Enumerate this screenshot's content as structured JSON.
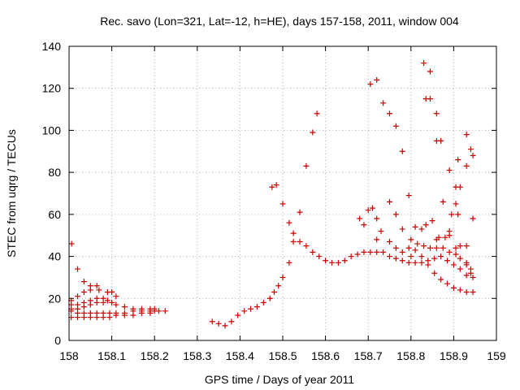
{
  "chart_data": {
    "type": "scatter",
    "title": "Rec. savo (Lon=321, Lat=-12, h=HE), days 157-158, 2011, window 004",
    "xlabel": "GPS time / Days of year 2011",
    "ylabel": "STEC from uqrg / TECUs",
    "xlim": [
      158,
      159
    ],
    "ylim": [
      0,
      140
    ],
    "x_ticks": [
      "158",
      "158.1",
      "158.2",
      "158.3",
      "158.4",
      "158.5",
      "158.6",
      "158.7",
      "158.8",
      "158.9",
      "159"
    ],
    "y_ticks": [
      "0",
      "20",
      "40",
      "60",
      "80",
      "100",
      "120",
      "140"
    ],
    "grid": true,
    "marker": "plus",
    "marker_color": "#cc0000",
    "points": [
      [
        158.006,
        46
      ],
      [
        158.02,
        34
      ],
      [
        158.035,
        28
      ],
      [
        158.05,
        26
      ],
      [
        158.065,
        26
      ],
      [
        158.005,
        19
      ],
      [
        158.02,
        21
      ],
      [
        158.035,
        23
      ],
      [
        158.05,
        24
      ],
      [
        158.07,
        24
      ],
      [
        158.09,
        23
      ],
      [
        158.1,
        23
      ],
      [
        158.11,
        21
      ],
      [
        158.005,
        17
      ],
      [
        158.02,
        17
      ],
      [
        158.035,
        18
      ],
      [
        158.05,
        19
      ],
      [
        158.065,
        20
      ],
      [
        158.08,
        20
      ],
      [
        158.09,
        19
      ],
      [
        158.1,
        18
      ],
      [
        158.11,
        17
      ],
      [
        158.13,
        16
      ],
      [
        158.15,
        15
      ],
      [
        158.17,
        15
      ],
      [
        158.19,
        15
      ],
      [
        158.2,
        15
      ],
      [
        158.005,
        15
      ],
      [
        158.02,
        15
      ],
      [
        158.035,
        16
      ],
      [
        158.05,
        17
      ],
      [
        158.065,
        18
      ],
      [
        158.08,
        18
      ],
      [
        158.005,
        14
      ],
      [
        158.02,
        13
      ],
      [
        158.035,
        13
      ],
      [
        158.05,
        13
      ],
      [
        158.065,
        13
      ],
      [
        158.08,
        13
      ],
      [
        158.095,
        13
      ],
      [
        158.11,
        13
      ],
      [
        158.13,
        13
      ],
      [
        158.15,
        14
      ],
      [
        158.17,
        14
      ],
      [
        158.19,
        14
      ],
      [
        158.21,
        14
      ],
      [
        158.225,
        14
      ],
      [
        158.005,
        11
      ],
      [
        158.02,
        11
      ],
      [
        158.035,
        11
      ],
      [
        158.05,
        11
      ],
      [
        158.065,
        11
      ],
      [
        158.08,
        11
      ],
      [
        158.095,
        11
      ],
      [
        158.11,
        12
      ],
      [
        158.13,
        12
      ],
      [
        158.15,
        12
      ],
      [
        158.17,
        13
      ],
      [
        158.19,
        13
      ],
      [
        158.2,
        14
      ],
      [
        158.335,
        9
      ],
      [
        158.35,
        8
      ],
      [
        158.365,
        7
      ],
      [
        158.38,
        9
      ],
      [
        158.395,
        12
      ],
      [
        158.41,
        14
      ],
      [
        158.425,
        15
      ],
      [
        158.44,
        16
      ],
      [
        158.455,
        18
      ],
      [
        158.47,
        20
      ],
      [
        158.48,
        23
      ],
      [
        158.49,
        26
      ],
      [
        158.5,
        30
      ],
      [
        158.515,
        37
      ],
      [
        158.525,
        47
      ],
      [
        158.54,
        47
      ],
      [
        158.555,
        45
      ],
      [
        158.57,
        42
      ],
      [
        158.585,
        40
      ],
      [
        158.6,
        38
      ],
      [
        158.615,
        37
      ],
      [
        158.63,
        37
      ],
      [
        158.645,
        38
      ],
      [
        158.66,
        40
      ],
      [
        158.675,
        41
      ],
      [
        158.69,
        42
      ],
      [
        158.705,
        42
      ],
      [
        158.72,
        42
      ],
      [
        158.475,
        73
      ],
      [
        158.485,
        74
      ],
      [
        158.5,
        65
      ],
      [
        158.515,
        56
      ],
      [
        158.525,
        51
      ],
      [
        158.54,
        61
      ],
      [
        158.555,
        83
      ],
      [
        158.57,
        99
      ],
      [
        158.58,
        108
      ],
      [
        158.68,
        58
      ],
      [
        158.69,
        55
      ],
      [
        158.7,
        62
      ],
      [
        158.71,
        63
      ],
      [
        158.72,
        58
      ],
      [
        158.73,
        52
      ],
      [
        158.75,
        47
      ],
      [
        158.765,
        44
      ],
      [
        158.78,
        42
      ],
      [
        158.8,
        40
      ],
      [
        158.705,
        122
      ],
      [
        158.72,
        124
      ],
      [
        158.735,
        113
      ],
      [
        158.75,
        108
      ],
      [
        158.765,
        102
      ],
      [
        158.78,
        90
      ],
      [
        158.795,
        69
      ],
      [
        158.81,
        54
      ],
      [
        158.825,
        53
      ],
      [
        158.72,
        48
      ],
      [
        158.735,
        42
      ],
      [
        158.75,
        40
      ],
      [
        158.765,
        39
      ],
      [
        158.78,
        38
      ],
      [
        158.795,
        37
      ],
      [
        158.81,
        37
      ],
      [
        158.825,
        37
      ],
      [
        158.84,
        38
      ],
      [
        158.855,
        39
      ],
      [
        158.87,
        40
      ],
      [
        158.885,
        38
      ],
      [
        158.9,
        36
      ],
      [
        158.915,
        34
      ],
      [
        158.93,
        31
      ],
      [
        158.945,
        30
      ],
      [
        158.83,
        132
      ],
      [
        158.845,
        128
      ],
      [
        158.835,
        115
      ],
      [
        158.845,
        115
      ],
      [
        158.86,
        108
      ],
      [
        158.86,
        95
      ],
      [
        158.87,
        95
      ],
      [
        158.89,
        81
      ],
      [
        158.905,
        73
      ],
      [
        158.915,
        73
      ],
      [
        158.91,
        86
      ],
      [
        158.93,
        83
      ],
      [
        158.93,
        98
      ],
      [
        158.94,
        91
      ],
      [
        158.945,
        88
      ],
      [
        158.945,
        58
      ],
      [
        158.75,
        66
      ],
      [
        158.765,
        60
      ],
      [
        158.78,
        53
      ],
      [
        158.8,
        48
      ],
      [
        158.815,
        46
      ],
      [
        158.83,
        45
      ],
      [
        158.845,
        44
      ],
      [
        158.86,
        44
      ],
      [
        158.875,
        44
      ],
      [
        158.89,
        42
      ],
      [
        158.905,
        41
      ],
      [
        158.915,
        39
      ],
      [
        158.93,
        37
      ],
      [
        158.94,
        34
      ],
      [
        158.835,
        55
      ],
      [
        158.85,
        57
      ],
      [
        158.865,
        49
      ],
      [
        158.88,
        49
      ],
      [
        158.89,
        52
      ],
      [
        158.895,
        60
      ],
      [
        158.905,
        65
      ],
      [
        158.91,
        60
      ],
      [
        158.795,
        44
      ],
      [
        158.81,
        43
      ],
      [
        158.825,
        40
      ],
      [
        158.84,
        36
      ],
      [
        158.855,
        32
      ],
      [
        158.87,
        29
      ],
      [
        158.885,
        27
      ],
      [
        158.9,
        25
      ],
      [
        158.915,
        24
      ],
      [
        158.93,
        23
      ],
      [
        158.945,
        23
      ],
      [
        158.86,
        48
      ],
      [
        158.875,
        66
      ],
      [
        158.89,
        50
      ],
      [
        158.905,
        44
      ],
      [
        158.915,
        45
      ],
      [
        158.93,
        45
      ],
      [
        158.93,
        36
      ],
      [
        158.94,
        32
      ]
    ]
  }
}
